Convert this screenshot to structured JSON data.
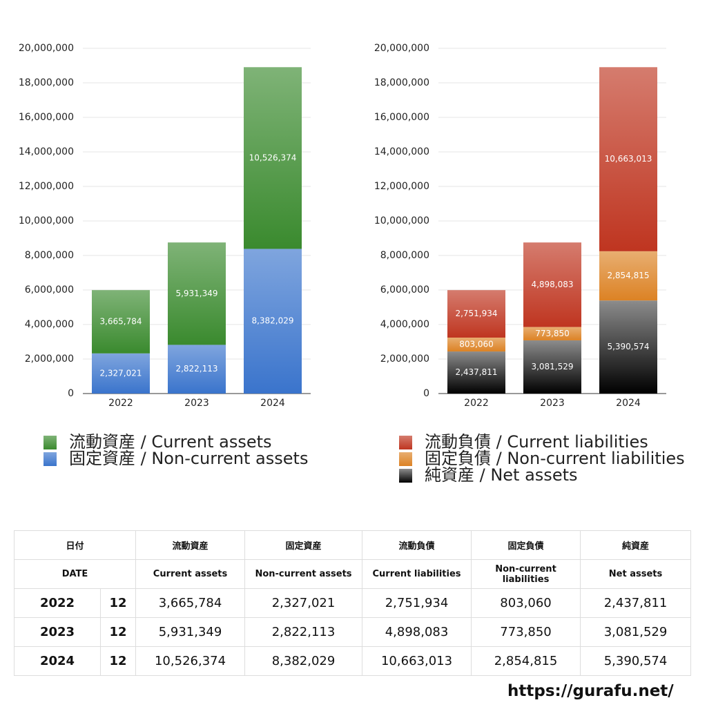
{
  "chart_data": [
    {
      "type": "bar",
      "stacked": true,
      "grid": true,
      "categories": [
        "2022",
        "2023",
        "2024"
      ],
      "ylim": [
        0,
        20000000
      ],
      "yticks": [
        0,
        {
          "value": 2000000,
          "label": "2,000,000"
        },
        {
          "value": 4000000,
          "label": "4,000,000"
        },
        {
          "value": 6000000,
          "label": "6,000,000"
        },
        {
          "value": 8000000,
          "label": "8,000,000"
        },
        {
          "value": 10000000,
          "label": "10,000,000"
        },
        {
          "value": 12000000,
          "label": "12,000,000"
        },
        {
          "value": 14000000,
          "label": "14,000,000"
        },
        {
          "value": 16000000,
          "label": "16,000,000"
        },
        {
          "value": 18000000,
          "label": "18,000,000"
        },
        {
          "value": 20000000,
          "label": "20,000,000"
        }
      ],
      "series": [
        {
          "name": "固定資産 / Non-current assets",
          "color": "#3a74cc",
          "values": [
            2327021,
            2822113,
            8382029
          ],
          "value_labels": [
            "2,327,021",
            "2,822,113",
            "8,382,029"
          ]
        },
        {
          "name": "流動資産 / Current assets",
          "color": "#3a8a2e",
          "values": [
            3665784,
            5931349,
            10526374
          ],
          "value_labels": [
            "3,665,784",
            "5,931,349",
            "10,526,374"
          ]
        }
      ]
    },
    {
      "type": "bar",
      "stacked": true,
      "grid": true,
      "categories": [
        "2022",
        "2023",
        "2024"
      ],
      "ylim": [
        0,
        20000000
      ],
      "yticks": [
        0,
        {
          "value": 2000000,
          "label": "2,000,000"
        },
        {
          "value": 4000000,
          "label": "4,000,000"
        },
        {
          "value": 6000000,
          "label": "6,000,000"
        },
        {
          "value": 8000000,
          "label": "8,000,000"
        },
        {
          "value": 10000000,
          "label": "10,000,000"
        },
        {
          "value": 12000000,
          "label": "12,000,000"
        },
        {
          "value": 14000000,
          "label": "14,000,000"
        },
        {
          "value": 16000000,
          "label": "16,000,000"
        },
        {
          "value": 18000000,
          "label": "18,000,000"
        },
        {
          "value": 20000000,
          "label": "20,000,000"
        }
      ],
      "series": [
        {
          "name": "純資産 / Net assets",
          "color": "#000000",
          "values": [
            2437811,
            3081529,
            5390574
          ],
          "value_labels": [
            "2,437,811",
            "3,081,529",
            "5,390,574"
          ]
        },
        {
          "name": "固定負債 / Non-current liabilities",
          "color": "#dc8224",
          "values": [
            803060,
            773850,
            2854815
          ],
          "value_labels": [
            "803,060",
            "773,850",
            "2,854,815"
          ]
        },
        {
          "name": "流動負債 / Current liabilities",
          "color": "#bf3520",
          "values": [
            2751934,
            4898083,
            10663013
          ],
          "value_labels": [
            "2,751,934",
            "4,898,083",
            "10,663,013"
          ]
        }
      ]
    }
  ],
  "table": {
    "header": [
      [
        "日付",
        "流動資産",
        "固定資産",
        "流動負債",
        "固定負債",
        "純資産"
      ],
      [
        "DATE",
        "Current assets",
        "Non-current assets",
        "Current liabilities",
        "Non-current liabilities",
        "Net assets"
      ]
    ],
    "rows": [
      [
        "2022",
        "12",
        "3,665,784",
        "2,327,021",
        "2,751,934",
        "803,060",
        "2,437,811"
      ],
      [
        "2023",
        "12",
        "5,931,349",
        "2,822,113",
        "4,898,083",
        "773,850",
        "3,081,529"
      ],
      [
        "2024",
        "12",
        "10,526,374",
        "8,382,029",
        "10,663,013",
        "2,854,815",
        "5,390,574"
      ]
    ]
  },
  "footer": {
    "url": "https://gurafu.net/"
  }
}
